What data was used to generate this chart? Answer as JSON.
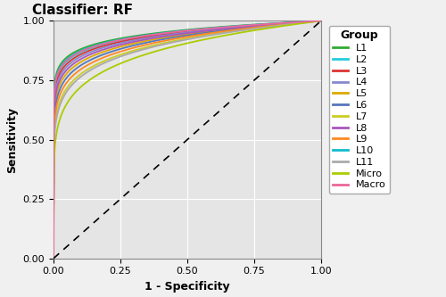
{
  "title": "Classifier: RF",
  "xlabel": "1 - Specificity",
  "ylabel": "Sensitivity",
  "legend_title": "Group",
  "xlim": [
    0.0,
    1.0
  ],
  "ylim": [
    0.0,
    1.0
  ],
  "background_color": "#e5e5e5",
  "grid_color": "#ffffff",
  "fig_facecolor": "#f0f0f0",
  "curves": [
    {
      "label": "L1",
      "color": "#33aa33",
      "beta": 18.0
    },
    {
      "label": "L2",
      "color": "#22ccdd",
      "beta": 16.0
    },
    {
      "label": "L3",
      "color": "#dd3333",
      "beta": 15.0
    },
    {
      "label": "L4",
      "color": "#8888cc",
      "beta": 14.0
    },
    {
      "label": "L5",
      "color": "#ddaa00",
      "beta": 12.0
    },
    {
      "label": "L6",
      "color": "#5577bb",
      "beta": 11.0
    },
    {
      "label": "L7",
      "color": "#cccc22",
      "beta": 9.0
    },
    {
      "label": "L8",
      "color": "#aa55bb",
      "beta": 13.0
    },
    {
      "label": "L9",
      "color": "#ff8822",
      "beta": 10.0
    },
    {
      "label": "L10",
      "color": "#11bbcc",
      "beta": 17.0
    },
    {
      "label": "L11",
      "color": "#aaaaaa",
      "beta": 8.5
    },
    {
      "label": "Micro",
      "color": "#aacc00",
      "beta": 7.0
    },
    {
      "label": "Macro",
      "color": "#ee6699",
      "beta": 16.5
    }
  ],
  "diagonal_color": "#000000",
  "title_fontsize": 11,
  "axis_label_fontsize": 9,
  "tick_fontsize": 8,
  "legend_fontsize": 8,
  "linewidth": 1.3
}
